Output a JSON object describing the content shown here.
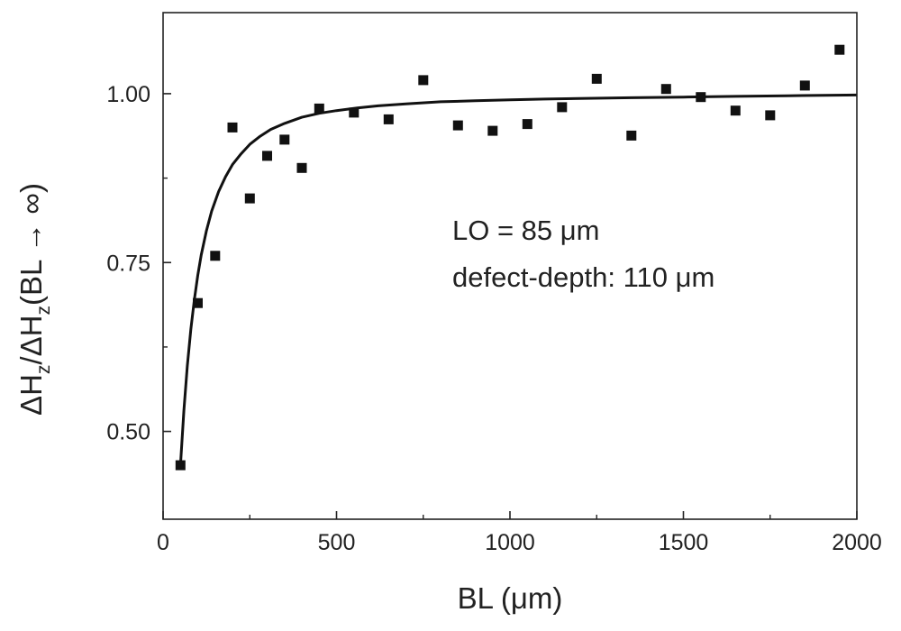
{
  "chart_data": {
    "type": "scatter",
    "xlabel": "BL (μm)",
    "ylabel": {
      "prefix": "ΔH",
      "sub1": "z",
      "mid": "/ΔH",
      "sub2": "z",
      "suffix": "(BL → ∞)"
    },
    "xlim": [
      0,
      2000
    ],
    "ylim": [
      0.37,
      1.12
    ],
    "xticks": [
      0,
      500,
      1000,
      1500,
      2000
    ],
    "xtick_labels": [
      "0",
      "500",
      "1000",
      "1500",
      "2000"
    ],
    "yticks": [
      0.5,
      0.75,
      1.0
    ],
    "ytick_labels": [
      "0.50",
      "0.75",
      "1.00"
    ],
    "grid": false,
    "annotations": [
      "LO = 85 μm",
      "defect-depth: 110 μm"
    ],
    "points": [
      {
        "x": 50,
        "y": 0.45
      },
      {
        "x": 100,
        "y": 0.69
      },
      {
        "x": 150,
        "y": 0.76
      },
      {
        "x": 200,
        "y": 0.95
      },
      {
        "x": 250,
        "y": 0.845
      },
      {
        "x": 300,
        "y": 0.908
      },
      {
        "x": 350,
        "y": 0.932
      },
      {
        "x": 400,
        "y": 0.89
      },
      {
        "x": 450,
        "y": 0.978
      },
      {
        "x": 550,
        "y": 0.972
      },
      {
        "x": 650,
        "y": 0.962
      },
      {
        "x": 750,
        "y": 1.02
      },
      {
        "x": 850,
        "y": 0.953
      },
      {
        "x": 950,
        "y": 0.945
      },
      {
        "x": 1050,
        "y": 0.955
      },
      {
        "x": 1150,
        "y": 0.98
      },
      {
        "x": 1250,
        "y": 1.022
      },
      {
        "x": 1350,
        "y": 0.938
      },
      {
        "x": 1450,
        "y": 1.007
      },
      {
        "x": 1550,
        "y": 0.995
      },
      {
        "x": 1650,
        "y": 0.975
      },
      {
        "x": 1750,
        "y": 0.968
      },
      {
        "x": 1850,
        "y": 1.012
      },
      {
        "x": 1950,
        "y": 1.065
      }
    ],
    "fit_curve": {
      "type": "line",
      "x": [
        50,
        60,
        70,
        80,
        90,
        100,
        110,
        125,
        140,
        160,
        180,
        200,
        225,
        250,
        280,
        310,
        350,
        400,
        450,
        500,
        560,
        620,
        700,
        800,
        900,
        1000,
        1100,
        1200,
        1350,
        1500,
        1650,
        1800,
        2000
      ],
      "y": [
        0.45,
        0.531,
        0.597,
        0.651,
        0.695,
        0.731,
        0.761,
        0.797,
        0.826,
        0.855,
        0.877,
        0.895,
        0.911,
        0.925,
        0.937,
        0.947,
        0.956,
        0.965,
        0.971,
        0.975,
        0.979,
        0.982,
        0.985,
        0.988,
        0.9895,
        0.991,
        0.992,
        0.993,
        0.994,
        0.995,
        0.996,
        0.997,
        0.998
      ]
    }
  }
}
